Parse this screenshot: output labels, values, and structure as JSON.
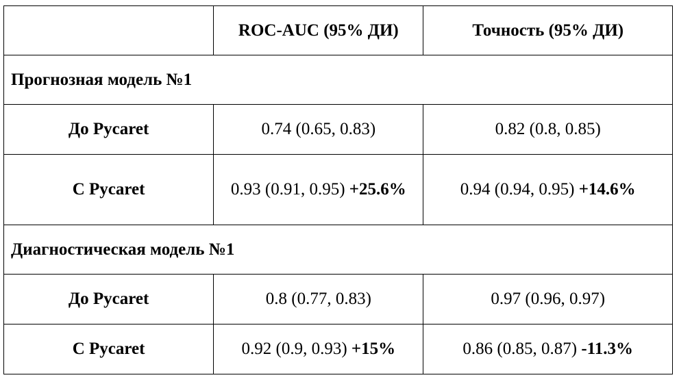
{
  "table": {
    "header": {
      "empty": "",
      "col1": "ROC-AUC (95% ДИ)",
      "col2": "Точность (95% ДИ)"
    },
    "sections": [
      {
        "title": "Прогнозная модель №1",
        "rows": [
          {
            "label": "До Pycaret",
            "auc_value": "0.74 (0.65, 0.83)",
            "auc_delta": "",
            "acc_value": "0.82 (0.8, 0.85)",
            "acc_delta": ""
          },
          {
            "label": "С Pycaret",
            "auc_value": "0.93 (0.91, 0.95)",
            "auc_delta": "+25.6%",
            "acc_value": "0.94 (0.94, 0.95)",
            "acc_delta": "+14.6%"
          }
        ]
      },
      {
        "title": "Диагностическая модель №1",
        "rows": [
          {
            "label": "До Pycaret",
            "auc_value": "0.8 (0.77, 0.83)",
            "auc_delta": "",
            "acc_value": "0.97 (0.96, 0.97)",
            "acc_delta": ""
          },
          {
            "label": "С Pycaret",
            "auc_value": "0.92 (0.9, 0.93)",
            "auc_delta": "+15%",
            "acc_value": "0.86 (0.85, 0.87)",
            "acc_delta": "-11.3%"
          }
        ]
      }
    ]
  }
}
